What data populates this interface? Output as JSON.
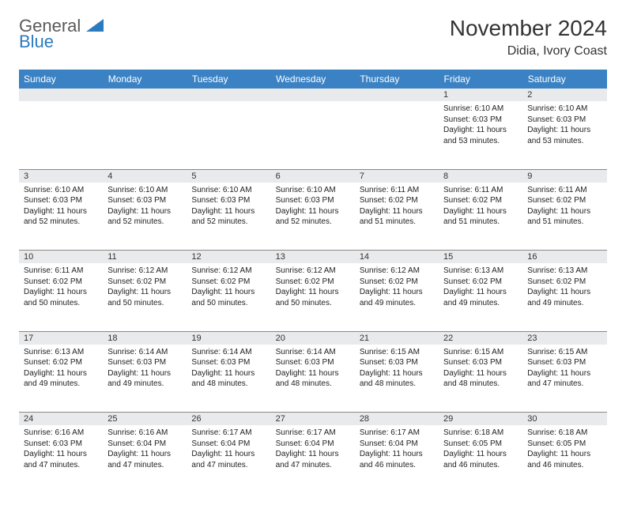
{
  "logo": {
    "part1": "General",
    "part2": "Blue"
  },
  "title": "November 2024",
  "location": "Didia, Ivory Coast",
  "colors": {
    "header_bg": "#3b82c4",
    "header_fg": "#ffffff",
    "daynum_bg": "#e9eaec",
    "border": "#888888",
    "logo_gray": "#5a5a5a",
    "logo_blue": "#2b7bbf",
    "text": "#222222"
  },
  "day_headers": [
    "Sunday",
    "Monday",
    "Tuesday",
    "Wednesday",
    "Thursday",
    "Friday",
    "Saturday"
  ],
  "weeks": [
    {
      "nums": [
        "",
        "",
        "",
        "",
        "",
        "1",
        "2"
      ],
      "cells": [
        "",
        "",
        "",
        "",
        "",
        "Sunrise: 6:10 AM\nSunset: 6:03 PM\nDaylight: 11 hours and 53 minutes.",
        "Sunrise: 6:10 AM\nSunset: 6:03 PM\nDaylight: 11 hours and 53 minutes."
      ]
    },
    {
      "nums": [
        "3",
        "4",
        "5",
        "6",
        "7",
        "8",
        "9"
      ],
      "cells": [
        "Sunrise: 6:10 AM\nSunset: 6:03 PM\nDaylight: 11 hours and 52 minutes.",
        "Sunrise: 6:10 AM\nSunset: 6:03 PM\nDaylight: 11 hours and 52 minutes.",
        "Sunrise: 6:10 AM\nSunset: 6:03 PM\nDaylight: 11 hours and 52 minutes.",
        "Sunrise: 6:10 AM\nSunset: 6:03 PM\nDaylight: 11 hours and 52 minutes.",
        "Sunrise: 6:11 AM\nSunset: 6:02 PM\nDaylight: 11 hours and 51 minutes.",
        "Sunrise: 6:11 AM\nSunset: 6:02 PM\nDaylight: 11 hours and 51 minutes.",
        "Sunrise: 6:11 AM\nSunset: 6:02 PM\nDaylight: 11 hours and 51 minutes."
      ]
    },
    {
      "nums": [
        "10",
        "11",
        "12",
        "13",
        "14",
        "15",
        "16"
      ],
      "cells": [
        "Sunrise: 6:11 AM\nSunset: 6:02 PM\nDaylight: 11 hours and 50 minutes.",
        "Sunrise: 6:12 AM\nSunset: 6:02 PM\nDaylight: 11 hours and 50 minutes.",
        "Sunrise: 6:12 AM\nSunset: 6:02 PM\nDaylight: 11 hours and 50 minutes.",
        "Sunrise: 6:12 AM\nSunset: 6:02 PM\nDaylight: 11 hours and 50 minutes.",
        "Sunrise: 6:12 AM\nSunset: 6:02 PM\nDaylight: 11 hours and 49 minutes.",
        "Sunrise: 6:13 AM\nSunset: 6:02 PM\nDaylight: 11 hours and 49 minutes.",
        "Sunrise: 6:13 AM\nSunset: 6:02 PM\nDaylight: 11 hours and 49 minutes."
      ]
    },
    {
      "nums": [
        "17",
        "18",
        "19",
        "20",
        "21",
        "22",
        "23"
      ],
      "cells": [
        "Sunrise: 6:13 AM\nSunset: 6:02 PM\nDaylight: 11 hours and 49 minutes.",
        "Sunrise: 6:14 AM\nSunset: 6:03 PM\nDaylight: 11 hours and 49 minutes.",
        "Sunrise: 6:14 AM\nSunset: 6:03 PM\nDaylight: 11 hours and 48 minutes.",
        "Sunrise: 6:14 AM\nSunset: 6:03 PM\nDaylight: 11 hours and 48 minutes.",
        "Sunrise: 6:15 AM\nSunset: 6:03 PM\nDaylight: 11 hours and 48 minutes.",
        "Sunrise: 6:15 AM\nSunset: 6:03 PM\nDaylight: 11 hours and 48 minutes.",
        "Sunrise: 6:15 AM\nSunset: 6:03 PM\nDaylight: 11 hours and 47 minutes."
      ]
    },
    {
      "nums": [
        "24",
        "25",
        "26",
        "27",
        "28",
        "29",
        "30"
      ],
      "cells": [
        "Sunrise: 6:16 AM\nSunset: 6:03 PM\nDaylight: 11 hours and 47 minutes.",
        "Sunrise: 6:16 AM\nSunset: 6:04 PM\nDaylight: 11 hours and 47 minutes.",
        "Sunrise: 6:17 AM\nSunset: 6:04 PM\nDaylight: 11 hours and 47 minutes.",
        "Sunrise: 6:17 AM\nSunset: 6:04 PM\nDaylight: 11 hours and 47 minutes.",
        "Sunrise: 6:17 AM\nSunset: 6:04 PM\nDaylight: 11 hours and 46 minutes.",
        "Sunrise: 6:18 AM\nSunset: 6:05 PM\nDaylight: 11 hours and 46 minutes.",
        "Sunrise: 6:18 AM\nSunset: 6:05 PM\nDaylight: 11 hours and 46 minutes."
      ]
    }
  ]
}
